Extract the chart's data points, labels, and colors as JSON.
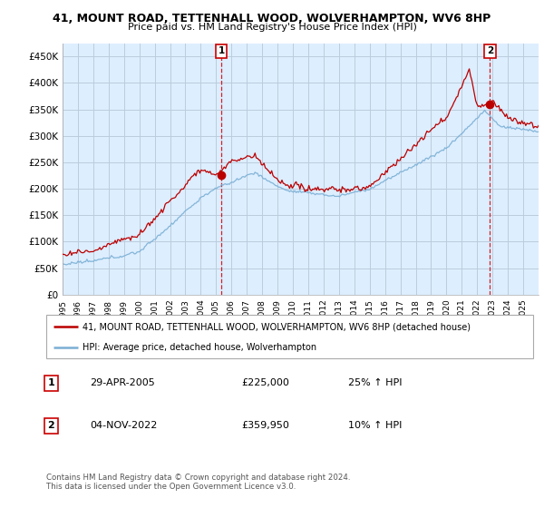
{
  "title": "41, MOUNT ROAD, TETTENHALL WOOD, WOLVERHAMPTON, WV6 8HP",
  "subtitle": "Price paid vs. HM Land Registry's House Price Index (HPI)",
  "ylim": [
    0,
    475000
  ],
  "yticks": [
    0,
    50000,
    100000,
    150000,
    200000,
    250000,
    300000,
    350000,
    400000,
    450000
  ],
  "ytick_labels": [
    "£0",
    "£50K",
    "£100K",
    "£150K",
    "£200K",
    "£250K",
    "£300K",
    "£350K",
    "£400K",
    "£450K"
  ],
  "background_color": "#ffffff",
  "chart_bg_color": "#ddeeff",
  "grid_color": "#bbccdd",
  "sale1_x": 10.33,
  "sale1_price": 225000,
  "sale2_x": 27.83,
  "sale2_price": 359950,
  "hpi_color": "#7aafd4",
  "price_color": "#bb0000",
  "legend_label_price": "41, MOUNT ROAD, TETTENHALL WOOD, WOLVERHAMPTON, WV6 8HP (detached house)",
  "legend_label_hpi": "HPI: Average price, detached house, Wolverhampton",
  "annotation1_date": "29-APR-2005",
  "annotation1_price": "£225,000",
  "annotation1_hpi": "25% ↑ HPI",
  "annotation2_date": "04-NOV-2022",
  "annotation2_price": "£359,950",
  "annotation2_hpi": "10% ↑ HPI",
  "footer": "Contains HM Land Registry data © Crown copyright and database right 2024.\nThis data is licensed under the Open Government Licence v3.0.",
  "xtick_labels": [
    "1995",
    "1996",
    "1997",
    "1998",
    "1999",
    "2000",
    "2001",
    "2002",
    "2003",
    "2004",
    "2005",
    "2006",
    "2007",
    "2008",
    "2009",
    "2010",
    "2011",
    "2012",
    "2013",
    "2014",
    "2015",
    "2016",
    "2017",
    "2018",
    "2019",
    "2020",
    "2021",
    "2022",
    "2023",
    "2024",
    "2025"
  ]
}
